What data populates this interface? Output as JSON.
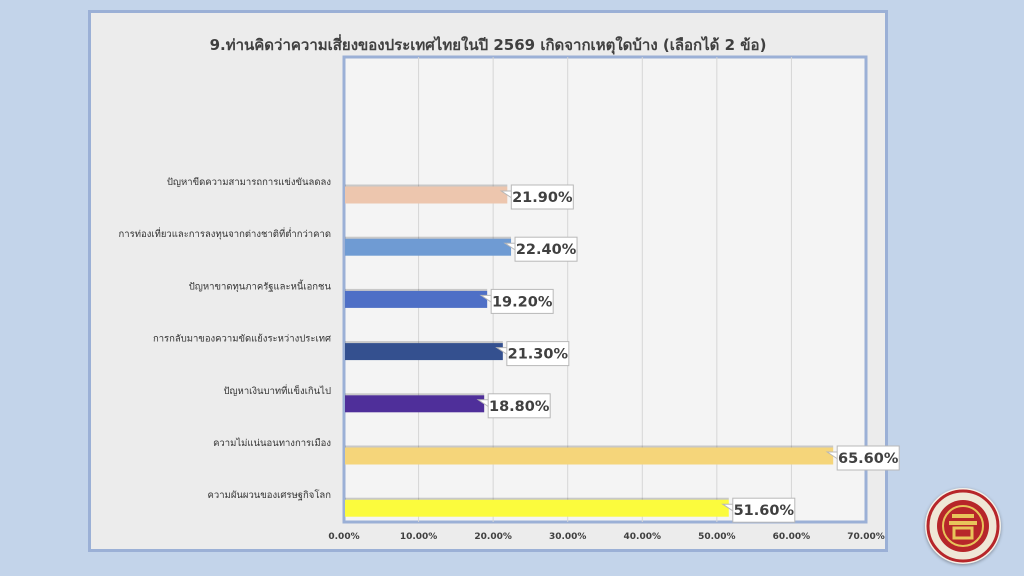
{
  "chart_data": {
    "type": "bar",
    "orientation": "horizontal",
    "title": "9.ท่านคิดว่าความเสี่ยงของประเทศไทยในปี 2569 เกิดจากเหตุใดบ้าง (เลือกได้ 2 ข้อ)",
    "categories": [
      "ปัญหาขีดความสามารถการแข่งขันลดลง",
      "การท่องเที่ยวและการลงทุนจากต่างชาติที่ต่ำกว่าคาด",
      "ปัญหาขาดทุนภาครัฐและหนี้เอกชน",
      "การกลับมาของความขัดแย้งระหว่างประเทศ",
      "ปัญหาเงินบาทที่แข็งเกินไป",
      "ความไม่แน่นอนทางการเมือง",
      "ความผันผวนของเศรษฐกิจโลก"
    ],
    "values": [
      21.9,
      22.4,
      19.2,
      21.3,
      18.8,
      65.6,
      51.6
    ],
    "value_labels": [
      "21.90%",
      "22.40%",
      "19.20%",
      "21.30%",
      "18.80%",
      "65.60%",
      "51.60%"
    ],
    "colors": [
      "#edc6ae",
      "#6f9bd3",
      "#4e6fc6",
      "#34508f",
      "#4f2f9a",
      "#f5d57a",
      "#fbfb3d"
    ],
    "xlim": [
      0,
      70
    ],
    "x_ticks": [
      "0.00%",
      "10.00%",
      "20.00%",
      "30.00%",
      "40.00%",
      "50.00%",
      "60.00%",
      "70.00%"
    ],
    "grid": true
  }
}
